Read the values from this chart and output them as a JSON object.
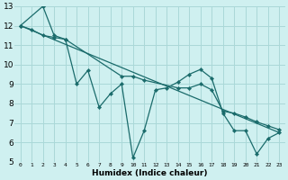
{
  "xlabel": "Humidex (Indice chaleur)",
  "bg_color": "#cff0f0",
  "grid_color": "#aad8d8",
  "line_color": "#1a6b6b",
  "xlim": [
    -0.5,
    23.5
  ],
  "ylim": [
    5,
    13
  ],
  "yticks": [
    5,
    6,
    7,
    8,
    9,
    10,
    11,
    12,
    13
  ],
  "xticks": [
    0,
    1,
    2,
    3,
    4,
    5,
    6,
    7,
    8,
    9,
    10,
    11,
    12,
    13,
    14,
    15,
    16,
    17,
    18,
    19,
    20,
    21,
    22,
    23
  ],
  "line1_x": [
    0,
    2,
    3,
    4,
    5,
    6,
    7,
    8,
    9,
    10,
    11,
    12,
    13,
    14,
    15,
    16,
    17,
    18,
    19,
    20,
    21,
    22,
    23
  ],
  "line1_y": [
    12,
    13,
    11.5,
    11.3,
    9.0,
    9.7,
    7.8,
    8.5,
    9.0,
    5.2,
    6.6,
    8.7,
    8.8,
    9.1,
    9.5,
    9.75,
    9.3,
    7.5,
    6.6,
    6.6,
    5.4,
    6.2,
    6.5
  ],
  "line2_x": [
    0,
    1,
    2,
    3,
    4,
    9,
    10,
    11,
    14,
    15,
    16,
    17,
    18,
    19,
    20,
    21,
    22,
    23
  ],
  "line2_y": [
    12,
    11.8,
    11.5,
    11.4,
    11.3,
    9.4,
    9.4,
    9.2,
    8.8,
    8.8,
    9.0,
    8.7,
    7.6,
    7.5,
    7.3,
    7.05,
    6.85,
    6.65
  ],
  "line3_x": [
    0,
    23
  ],
  "line3_y": [
    12,
    6.5
  ]
}
